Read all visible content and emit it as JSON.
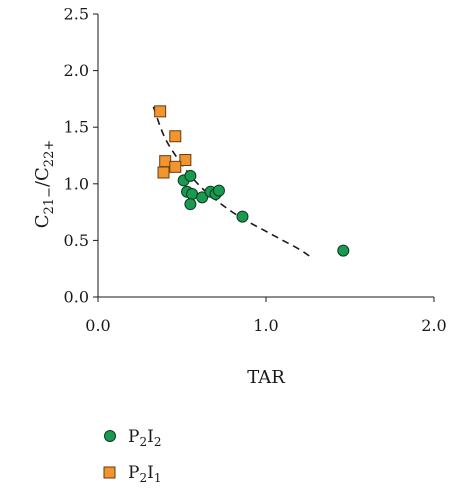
{
  "chart_data": {
    "type": "scatter",
    "xlabel": "TAR",
    "ylabel": {
      "main_1": "C",
      "sub_1": "21−",
      "main_2": "/C",
      "sub_2": "22+"
    },
    "xlim": [
      0.0,
      2.0
    ],
    "ylim": [
      0.0,
      2.5
    ],
    "x_ticks": [
      0.0,
      1.0,
      2.0
    ],
    "x_tick_labels": [
      "0.0",
      "1.0",
      "2.0"
    ],
    "y_ticks": [
      0.0,
      0.5,
      1.0,
      1.5,
      2.0,
      2.5
    ],
    "y_tick_labels": [
      "0.0",
      "0.5",
      "1.0",
      "1.5",
      "2.0",
      "2.5"
    ],
    "grid": false,
    "legend_position": "bottom-left",
    "series": [
      {
        "name": {
          "main_1": "P",
          "sub_1": "2",
          "main_2": "I",
          "sub_2": "2"
        },
        "marker": "circle",
        "color": "#1a9a50",
        "points": [
          [
            0.51,
            1.03
          ],
          [
            0.55,
            1.07
          ],
          [
            0.53,
            0.93
          ],
          [
            0.56,
            0.91
          ],
          [
            0.55,
            0.82
          ],
          [
            0.62,
            0.88
          ],
          [
            0.67,
            0.93
          ],
          [
            0.7,
            0.91
          ],
          [
            0.72,
            0.94
          ],
          [
            0.86,
            0.71
          ],
          [
            1.46,
            0.41
          ]
        ]
      },
      {
        "name": {
          "main_1": "P",
          "sub_1": "2",
          "main_2": "I",
          "sub_2": "1"
        },
        "marker": "square",
        "color": "#f0952f",
        "points": [
          [
            0.37,
            1.64
          ],
          [
            0.46,
            1.42
          ],
          [
            0.4,
            1.2
          ],
          [
            0.52,
            1.21
          ],
          [
            0.46,
            1.15
          ],
          [
            0.39,
            1.1
          ]
        ]
      }
    ],
    "trendline": {
      "style": "dashed",
      "color": "#1a1a1a",
      "points": [
        [
          0.33,
          1.68
        ],
        [
          0.4,
          1.4
        ],
        [
          0.5,
          1.17
        ],
        [
          0.6,
          0.99
        ],
        [
          0.7,
          0.86
        ],
        [
          0.8,
          0.75
        ],
        [
          0.9,
          0.66
        ],
        [
          1.0,
          0.58
        ],
        [
          1.1,
          0.5
        ],
        [
          1.2,
          0.42
        ],
        [
          1.27,
          0.35
        ]
      ]
    }
  }
}
